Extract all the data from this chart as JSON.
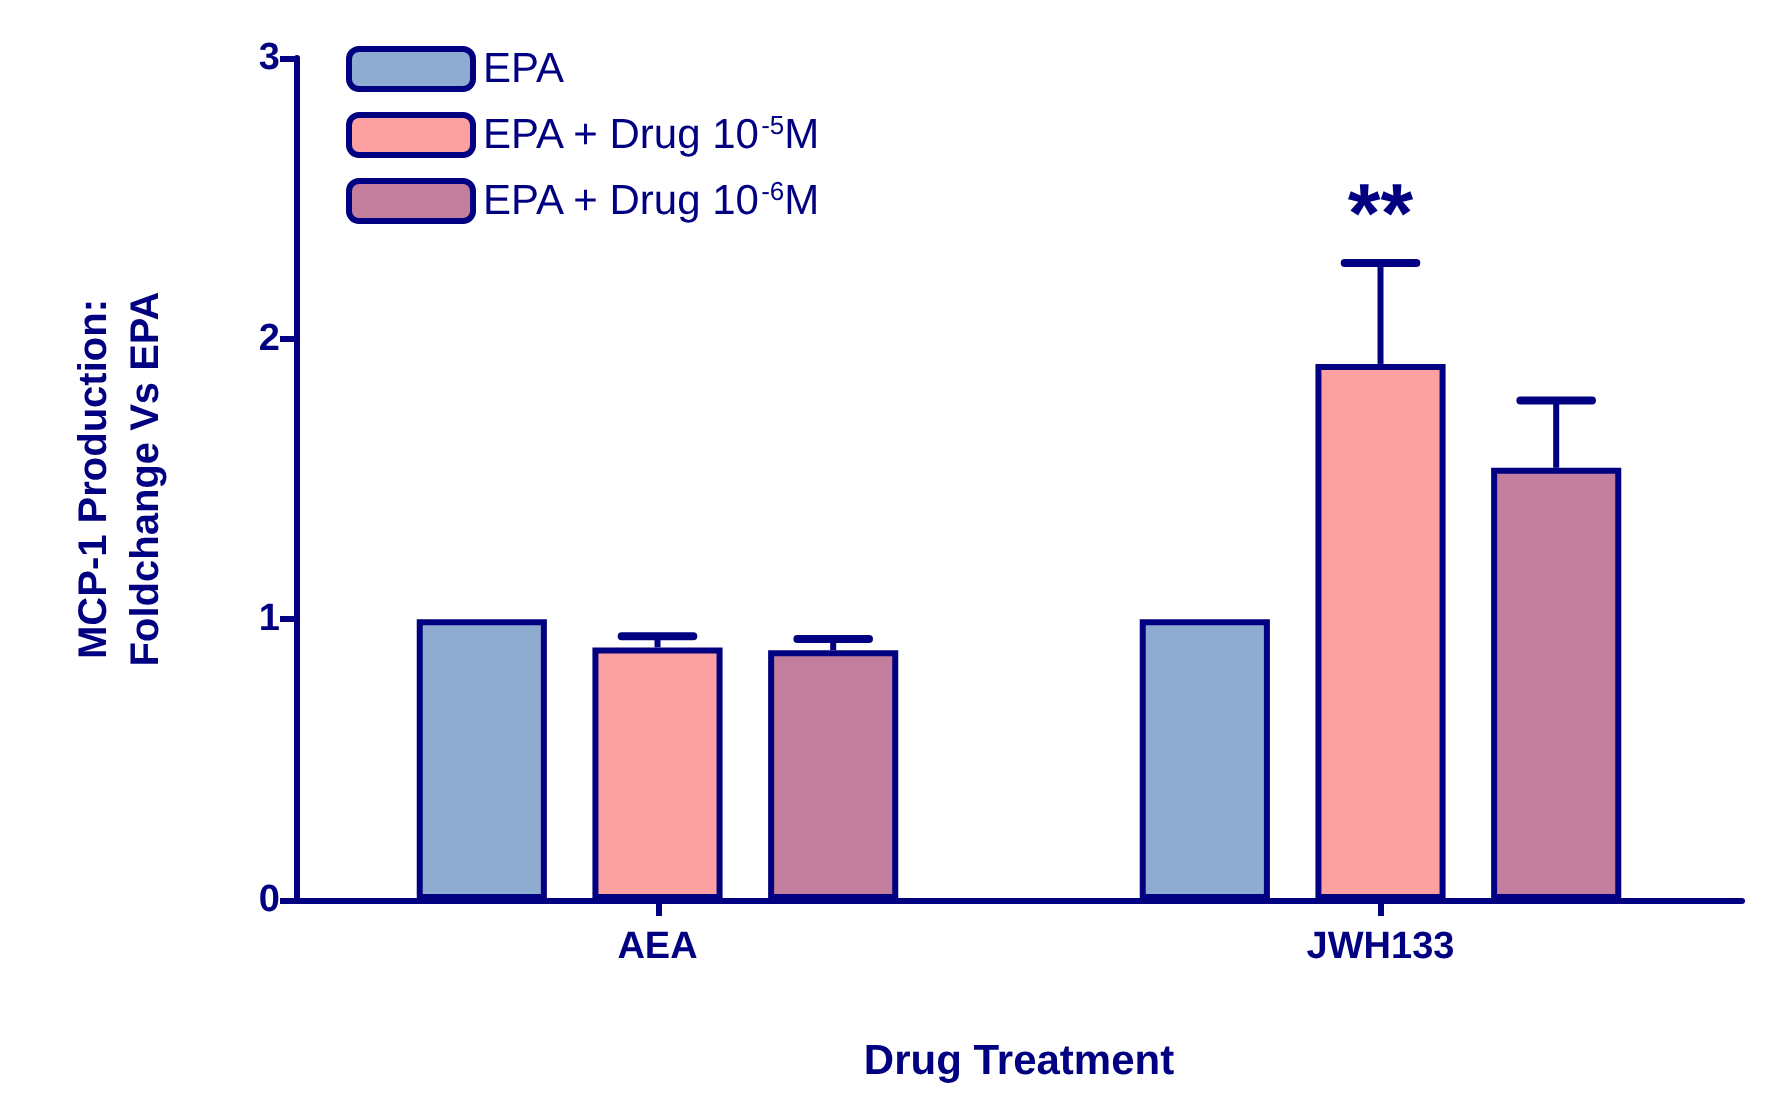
{
  "chart_data": {
    "type": "bar",
    "xlabel": "Drug Treatment",
    "ylabel": "MCP-1 Production:\nFoldchange Vs EPA",
    "categories": [
      "AEA",
      "JWH133"
    ],
    "series": [
      {
        "name": "EPA",
        "color": "#8eabd0",
        "values": [
          1,
          1
        ]
      },
      {
        "name": "EPA + Drug 10$^{-5}$M",
        "color": "#fda0a2",
        "values": [
          0.9,
          1.91
        ],
        "errors": [
          0.04,
          0.36
        ]
      },
      {
        "name": "EPA + Drug 10$^{-6}$M",
        "color": "#c37e9e",
        "values": [
          0.89,
          1.54
        ],
        "errors": [
          0.04,
          0.24
        ]
      }
    ],
    "ylim": [
      0,
      3
    ],
    "yticks": [
      0,
      1,
      2,
      3
    ],
    "grid": false,
    "legend": "top left",
    "annotations": [
      {
        "text": "**",
        "x": "JWH133",
        "y": 2.27
      }
    ]
  }
}
